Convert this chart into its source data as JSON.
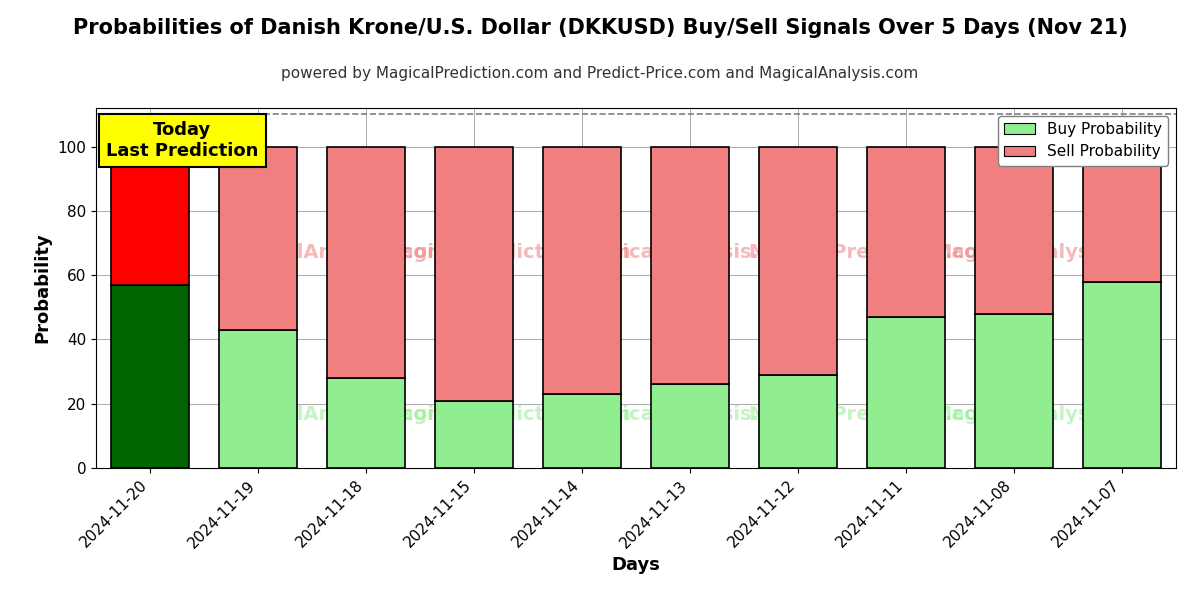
{
  "title": "Probabilities of Danish Krone/U.S. Dollar (DKKUSD) Buy/Sell Signals Over 5 Days (Nov 21)",
  "subtitle": "powered by MagicalPrediction.com and Predict-Price.com and MagicalAnalysis.com",
  "xlabel": "Days",
  "ylabel": "Probability",
  "categories": [
    "2024-11-20",
    "2024-11-19",
    "2024-11-18",
    "2024-11-15",
    "2024-11-14",
    "2024-11-13",
    "2024-11-12",
    "2024-11-11",
    "2024-11-08",
    "2024-11-07"
  ],
  "buy_values": [
    57,
    43,
    28,
    21,
    23,
    26,
    29,
    47,
    48,
    58
  ],
  "sell_values": [
    43,
    57,
    72,
    79,
    77,
    74,
    71,
    53,
    52,
    42
  ],
  "buy_colors": [
    "#006400",
    "#90EE90",
    "#90EE90",
    "#90EE90",
    "#90EE90",
    "#90EE90",
    "#90EE90",
    "#90EE90",
    "#90EE90",
    "#90EE90"
  ],
  "sell_colors": [
    "#FF0000",
    "#F08080",
    "#F08080",
    "#F08080",
    "#F08080",
    "#F08080",
    "#F08080",
    "#F08080",
    "#F08080",
    "#F08080"
  ],
  "buy_legend_color": "#90EE90",
  "sell_legend_color": "#F08080",
  "today_label": "Today\nLast Prediction",
  "today_bar_index": 0,
  "ylim": [
    0,
    112
  ],
  "yticks": [
    0,
    20,
    40,
    60,
    80,
    100
  ],
  "dashed_line_y": 110,
  "background_color": "#ffffff",
  "grid_color": "#aaaaaa",
  "bar_edge_color": "#000000",
  "title_fontsize": 15,
  "subtitle_fontsize": 11,
  "axis_label_fontsize": 13,
  "tick_fontsize": 11,
  "legend_fontsize": 11,
  "today_box_color": "#FFFF00",
  "today_text_color": "#000000",
  "today_fontsize": 13,
  "bar_width": 0.72
}
